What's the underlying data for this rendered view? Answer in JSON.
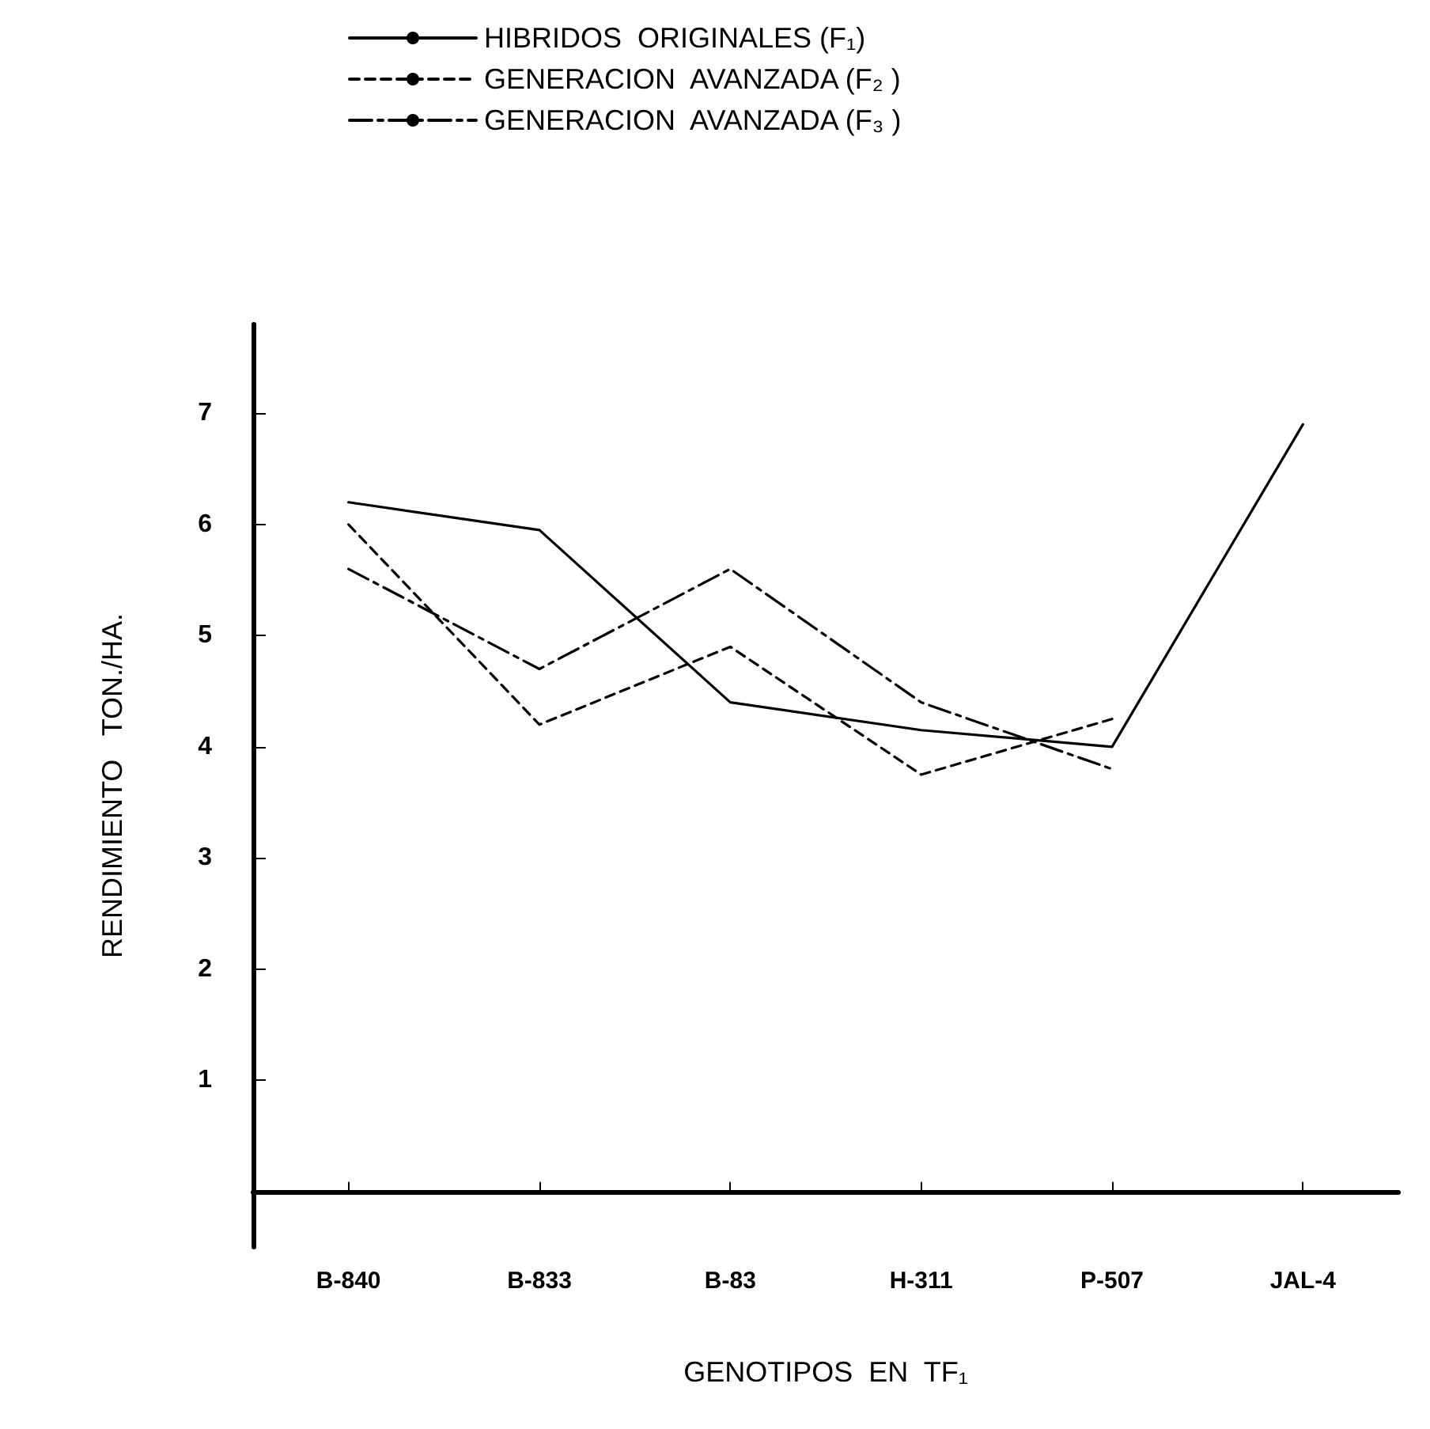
{
  "chart_data": {
    "type": "line",
    "xlabel": "GENOTIPOS  EN  TF₁",
    "ylabel": "RENDIMIENTO   TON./HA.",
    "categories": [
      "B-840",
      "B-833",
      "B-83",
      "H-311",
      "P-507",
      "JAL-4"
    ],
    "ylim": [
      -0.5,
      7.8
    ],
    "yticks": [
      1,
      2,
      3,
      4,
      5,
      6,
      7
    ],
    "grid": false,
    "legend": "top",
    "marker": "none",
    "series": [
      {
        "name": "HIBRIDOS  ORIGINALES (F₁)",
        "color": "#000000",
        "line_style": "solid",
        "values": [
          6.2,
          5.95,
          4.4,
          4.15,
          4.0,
          6.9
        ]
      },
      {
        "name": "GENERACION  AVANZADA (F₂ )",
        "color": "#000000",
        "line_style": "dashed",
        "values": [
          6.0,
          4.2,
          4.9,
          3.75,
          4.25,
          null
        ]
      },
      {
        "name": "GENERACION  AVANZADA (F₃ )",
        "color": "#000000",
        "line_style": "dashdot",
        "values": [
          5.6,
          4.7,
          5.6,
          4.4,
          3.8,
          null
        ]
      }
    ]
  }
}
